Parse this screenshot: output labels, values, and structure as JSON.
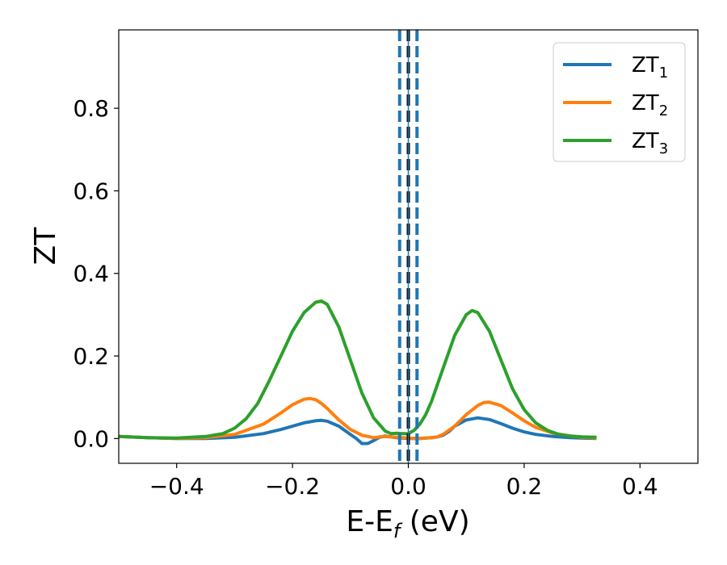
{
  "chart_data": {
    "type": "line",
    "title": "",
    "xlabel": "E-E",
    "xlabel_sub": "f",
    "xlabel_unit": " (eV)",
    "ylabel": "ZT",
    "xlim": [
      -0.5,
      0.5
    ],
    "ylim": [
      -0.06,
      0.99
    ],
    "xticks": [
      {
        "value": -0.4,
        "label": "−0.4"
      },
      {
        "value": -0.2,
        "label": "−0.2"
      },
      {
        "value": 0.0,
        "label": "0.0"
      },
      {
        "value": 0.2,
        "label": "0.2"
      },
      {
        "value": 0.4,
        "label": "0.4"
      }
    ],
    "yticks": [
      {
        "value": 0.0,
        "label": "0.0"
      },
      {
        "value": 0.2,
        "label": "0.2"
      },
      {
        "value": 0.4,
        "label": "0.4"
      },
      {
        "value": 0.6,
        "label": "0.6"
      },
      {
        "value": 0.8,
        "label": "0.8"
      }
    ],
    "grid": false,
    "legend": "top-right",
    "vlines": [
      {
        "x": -0.015,
        "color": "#1f77b4",
        "style": "dashed"
      },
      {
        "x": 0.0,
        "color": "#000000",
        "style": "dashed"
      },
      {
        "x": 0.015,
        "color": "#1f77b4",
        "style": "dashed"
      },
      {
        "x": 0.0,
        "color": "#1f77b4",
        "style": "solid-thin"
      }
    ],
    "series": [
      {
        "name": "ZT",
        "name_sub": "1",
        "color": "#1f77b4",
        "x": [
          -0.5,
          -0.45,
          -0.4,
          -0.35,
          -0.3,
          -0.25,
          -0.22,
          -0.2,
          -0.18,
          -0.16,
          -0.15,
          -0.14,
          -0.12,
          -0.1,
          -0.09,
          -0.08,
          -0.07,
          -0.06,
          -0.05,
          -0.04,
          -0.03,
          -0.02,
          -0.01,
          0.0,
          0.01,
          0.02,
          0.03,
          0.04,
          0.05,
          0.06,
          0.07,
          0.08,
          0.1,
          0.12,
          0.14,
          0.16,
          0.18,
          0.2,
          0.22,
          0.25,
          0.28,
          0.3,
          0.325
        ],
        "y": [
          0.005,
          0.002,
          0.0,
          0.0,
          0.003,
          0.012,
          0.022,
          0.03,
          0.038,
          0.043,
          0.044,
          0.042,
          0.03,
          0.01,
          0.0,
          -0.012,
          -0.012,
          -0.005,
          0.003,
          0.006,
          0.004,
          0.002,
          0.001,
          0.0,
          0.0,
          0.0,
          0.001,
          0.002,
          0.004,
          0.008,
          0.017,
          0.03,
          0.045,
          0.05,
          0.046,
          0.036,
          0.025,
          0.016,
          0.01,
          0.005,
          0.002,
          0.001,
          0.0
        ]
      },
      {
        "name": "ZT",
        "name_sub": "2",
        "color": "#ff7f0e",
        "x": [
          -0.5,
          -0.45,
          -0.4,
          -0.35,
          -0.3,
          -0.25,
          -0.22,
          -0.2,
          -0.18,
          -0.17,
          -0.16,
          -0.15,
          -0.14,
          -0.12,
          -0.1,
          -0.08,
          -0.06,
          -0.05,
          -0.04,
          -0.03,
          -0.02,
          -0.01,
          0.0,
          0.01,
          0.02,
          0.03,
          0.04,
          0.05,
          0.06,
          0.08,
          0.1,
          0.12,
          0.13,
          0.14,
          0.16,
          0.18,
          0.2,
          0.22,
          0.25,
          0.28,
          0.3,
          0.325
        ],
        "y": [
          0.005,
          0.002,
          0.0,
          0.002,
          0.01,
          0.035,
          0.062,
          0.082,
          0.095,
          0.097,
          0.094,
          0.085,
          0.073,
          0.045,
          0.022,
          0.008,
          0.002,
          0.004,
          0.005,
          0.004,
          0.003,
          0.002,
          0.001,
          0.0,
          0.0,
          0.001,
          0.002,
          0.004,
          0.01,
          0.03,
          0.058,
          0.08,
          0.087,
          0.088,
          0.08,
          0.062,
          0.043,
          0.027,
          0.013,
          0.006,
          0.003,
          0.001
        ]
      },
      {
        "name": "ZT",
        "name_sub": "3",
        "color": "#2ca02c",
        "x": [
          -0.5,
          -0.45,
          -0.4,
          -0.35,
          -0.32,
          -0.3,
          -0.28,
          -0.26,
          -0.24,
          -0.22,
          -0.2,
          -0.18,
          -0.16,
          -0.15,
          -0.14,
          -0.12,
          -0.1,
          -0.08,
          -0.06,
          -0.04,
          -0.03,
          -0.02,
          -0.01,
          0.0,
          0.01,
          0.02,
          0.03,
          0.04,
          0.06,
          0.08,
          0.1,
          0.11,
          0.12,
          0.14,
          0.16,
          0.18,
          0.2,
          0.22,
          0.24,
          0.26,
          0.28,
          0.3,
          0.325
        ],
        "y": [
          0.005,
          0.002,
          0.001,
          0.005,
          0.012,
          0.025,
          0.048,
          0.085,
          0.14,
          0.2,
          0.26,
          0.305,
          0.33,
          0.333,
          0.325,
          0.27,
          0.19,
          0.11,
          0.05,
          0.018,
          0.012,
          0.013,
          0.012,
          0.012,
          0.02,
          0.035,
          0.058,
          0.09,
          0.17,
          0.25,
          0.3,
          0.31,
          0.305,
          0.26,
          0.19,
          0.12,
          0.07,
          0.038,
          0.02,
          0.01,
          0.006,
          0.004,
          0.003
        ]
      }
    ]
  }
}
